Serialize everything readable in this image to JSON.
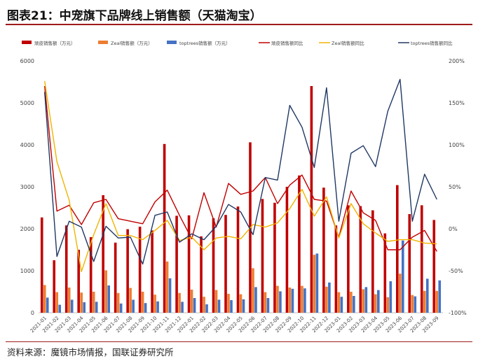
{
  "header": {
    "title": "图表21：中宠旗下品牌线上销售额（天猫淘宝）"
  },
  "footer": {
    "source": "资料来源：魔镜市场情报，国联证券研究所"
  },
  "chart_data": {
    "type": "bar",
    "categories": [
      "2021-01",
      "2021-02",
      "2021-03",
      "2021-04",
      "2021-05",
      "2021-06",
      "2021-07",
      "2021-08",
      "2021-09",
      "2021-10",
      "2021-11",
      "2021-12",
      "2022-01",
      "2022-02",
      "2022-03",
      "2022-04",
      "2022-05",
      "2022-06",
      "2022-07",
      "2022-08",
      "2022-09",
      "2022-10",
      "2022-11",
      "2022-12",
      "2023-01",
      "2023-02",
      "2023-03",
      "2023-04",
      "2023-05",
      "2023-06",
      "2023-07",
      "2023-08",
      "2023-09"
    ],
    "ylim_left": [
      0,
      6000
    ],
    "yticks_left": [
      "0",
      "1000",
      "2000",
      "3000",
      "4000",
      "5000",
      "6000"
    ],
    "ylim_right": [
      -100,
      200
    ],
    "yticks_right": [
      "-100%",
      "-50%",
      "0%",
      "50%",
      "100%",
      "150%",
      "200%"
    ],
    "grid": false,
    "legend_position": "top",
    "colors": {
      "wanpi_bar": "#c00000",
      "zeal_bar": "#ed7d31",
      "toptrees_bar": "#4472c4",
      "wanpi_line": "#c00000",
      "zeal_line": "#f0b400",
      "toptrees_line": "#203864"
    },
    "series": [
      {
        "name": "顽皮销售额（万元）",
        "type": "bar",
        "axis": "left",
        "values": [
          2270,
          1250,
          2080,
          1500,
          1800,
          2800,
          1670,
          1990,
          2050,
          1960,
          4020,
          2310,
          2320,
          1820,
          2250,
          2330,
          2530,
          4060,
          2710,
          2620,
          3000,
          3270,
          5400,
          2980,
          2080,
          2560,
          2540,
          2440,
          1890,
          3040,
          2350,
          2560,
          2210
        ]
      },
      {
        "name": "Zeal销售额（万元）",
        "type": "bar",
        "axis": "left",
        "values": [
          660,
          490,
          600,
          480,
          500,
          1010,
          470,
          590,
          500,
          430,
          1220,
          470,
          550,
          380,
          540,
          450,
          440,
          1060,
          490,
          640,
          600,
          640,
          1380,
          620,
          490,
          500,
          560,
          440,
          370,
          930,
          420,
          520,
          520
        ]
      },
      {
        "name": "toptrees销售额（万元）",
        "type": "bar",
        "axis": "left",
        "values": [
          360,
          190,
          310,
          250,
          260,
          650,
          220,
          310,
          230,
          270,
          820,
          260,
          350,
          200,
          310,
          300,
          320,
          610,
          350,
          510,
          570,
          580,
          1410,
          720,
          380,
          400,
          610,
          540,
          750,
          1720,
          390,
          810,
          770
        ]
      },
      {
        "name": "顽皮销售额同比",
        "type": "line",
        "axis": "right",
        "values": [
          170,
          21,
          28,
          5,
          31,
          35,
          12,
          9,
          6,
          32,
          46,
          16,
          -12,
          43,
          2,
          54,
          41,
          45,
          61,
          30,
          52,
          64,
          35,
          33,
          -10,
          45,
          19,
          10,
          -25,
          -25,
          -10,
          -2,
          -27
        ]
      },
      {
        "name": "Zeal销售额同比",
        "type": "line",
        "axis": "right",
        "values": [
          176,
          80,
          34,
          -51,
          -7,
          30,
          -8,
          -8,
          -13,
          -2,
          10,
          -14,
          -10,
          -25,
          -11,
          -9,
          -12,
          5,
          2,
          7,
          24,
          47,
          15,
          38,
          -11,
          30,
          6,
          -5,
          -15,
          -13,
          -13,
          -17,
          -18
        ]
      },
      {
        "name": "toptrees销售额同比",
        "type": "line",
        "axis": "right",
        "values": [
          163,
          -33,
          9,
          2,
          -39,
          3,
          -11,
          -10,
          -42,
          16,
          20,
          -16,
          -6,
          -13,
          3,
          29,
          20,
          -7,
          61,
          58,
          147,
          121,
          73,
          168,
          9,
          90,
          99,
          74,
          140,
          178,
          9,
          65,
          35
        ]
      }
    ]
  }
}
